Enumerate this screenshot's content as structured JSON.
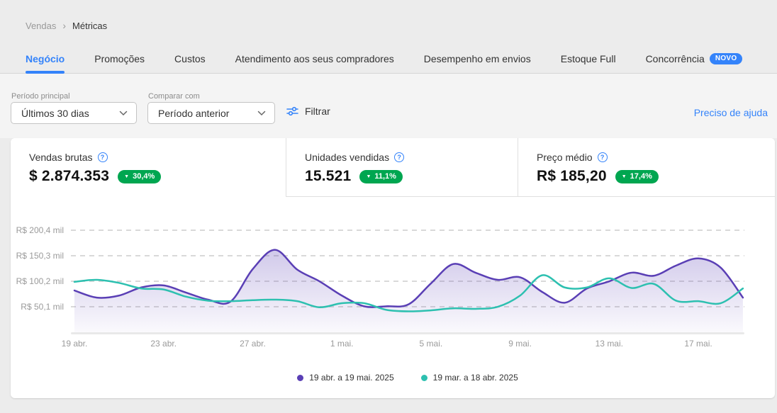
{
  "breadcrumb": {
    "parent": "Vendas",
    "current": "Métricas"
  },
  "tabs": [
    {
      "label": "Negócio",
      "active": true
    },
    {
      "label": "Promoções"
    },
    {
      "label": "Custos"
    },
    {
      "label": "Atendimento aos seus compradores"
    },
    {
      "label": "Desempenho em envios"
    },
    {
      "label": "Estoque Full"
    },
    {
      "label": "Concorrência",
      "badge": "NOVO"
    }
  ],
  "filters": {
    "period_label": "Período principal",
    "period_value": "Últimos 30 dias",
    "compare_label": "Comparar com",
    "compare_value": "Período anterior",
    "filter_button": "Filtrar",
    "help_link": "Preciso de ajuda"
  },
  "cards": [
    {
      "label": "Vendas brutas",
      "value": "$ 2.874.353",
      "delta": "30,4%",
      "direction": "down",
      "selected": true
    },
    {
      "label": "Unidades vendidas",
      "value": "15.521",
      "delta": "11,1%",
      "direction": "down",
      "selected": false
    },
    {
      "label": "Preço médio",
      "value": "R$ 185,20",
      "delta": "17,4%",
      "direction": "down",
      "selected": false
    }
  ],
  "colors": {
    "accent_blue": "#3483fa",
    "badge_green": "#00a650",
    "series_purple": "#5a3fb5",
    "series_teal": "#2dc0b0",
    "grid": "#d9d9d9"
  },
  "chart_data": {
    "type": "area",
    "unit": "R$ mil",
    "grid": true,
    "legend_position": "bottom",
    "ylim": [
      0,
      215
    ],
    "y_ticks": [
      {
        "value": 50.1,
        "label": "R$ 50,1 mil"
      },
      {
        "value": 100.2,
        "label": "R$ 100,2 mil"
      },
      {
        "value": 150.3,
        "label": "R$ 150,3 mil"
      },
      {
        "value": 200.4,
        "label": "R$ 200,4 mil"
      }
    ],
    "x_tick_days": [
      0,
      4,
      8,
      12,
      16,
      20,
      24,
      28
    ],
    "x_tick_labels": [
      "19 abr.",
      "23 abr.",
      "27 abr.",
      "1 mai.",
      "5 mai.",
      "9 mai.",
      "13 mai.",
      "17 mai."
    ],
    "series": [
      {
        "name": "19 abr. a 19 mai. 2025",
        "color": "#5a3fb5",
        "fill": true,
        "values": [
          82,
          68,
          72,
          88,
          92,
          78,
          64,
          60,
          124,
          162,
          123,
          100,
          72,
          51,
          51,
          55,
          96,
          134,
          117,
          103,
          108,
          79,
          58,
          86,
          100,
          117,
          111,
          131,
          145,
          127,
          68
        ]
      },
      {
        "name": "19 mar. a 18 abr. 2025",
        "color": "#2dc0b0",
        "fill": false,
        "values": [
          99,
          103,
          97,
          86,
          84,
          70,
          62,
          61,
          63,
          64,
          61,
          49,
          57,
          57,
          44,
          41,
          43,
          47,
          46,
          50,
          72,
          112,
          88,
          88,
          106,
          87,
          95,
          62,
          61,
          57,
          86
        ]
      }
    ]
  }
}
